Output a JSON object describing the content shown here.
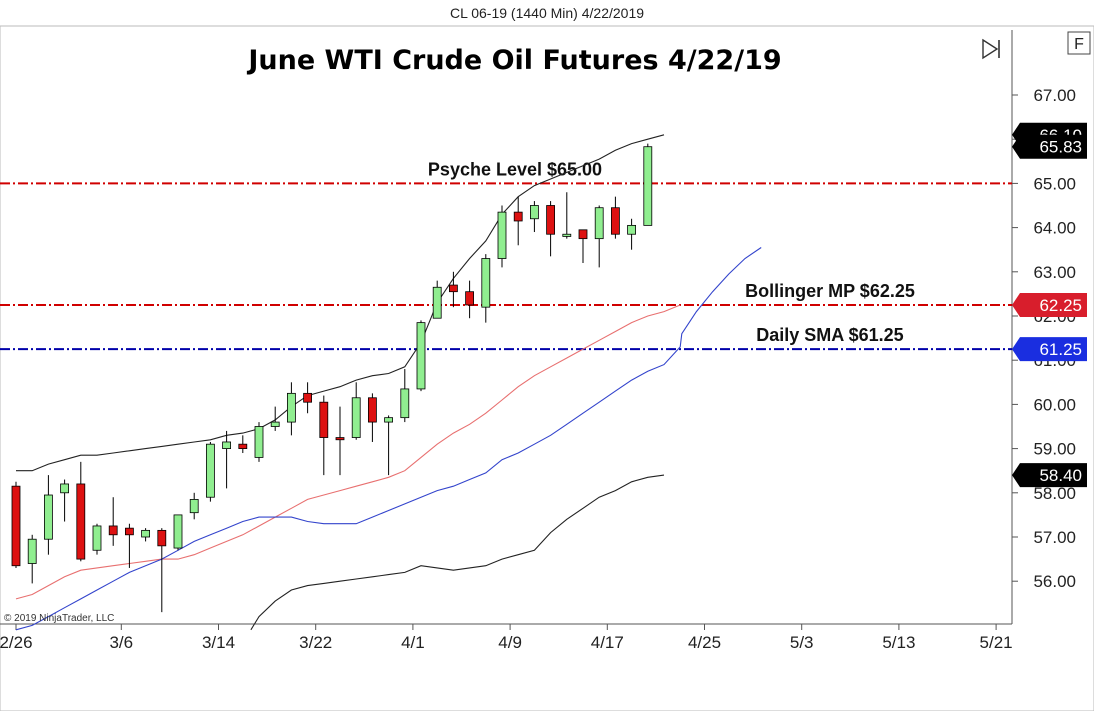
{
  "header": {
    "title": "CL 06-19 (1440 Min)  4/22/2019"
  },
  "toolbar": {
    "play_icon": "skip-to-end-icon",
    "f_button_label": "F"
  },
  "copyright": "© 2019 NinjaTrader, LLC",
  "colors": {
    "up": "#90ee90",
    "down": "#dd1111",
    "candle_outline": "#000000",
    "red_line": "#d00000",
    "blue_line": "#0000aa",
    "red_badge": "#d81e2c",
    "blue_badge": "#1a2ee0",
    "black_badge": "#000000"
  },
  "chart_data": {
    "type": "candlestick",
    "title": "June WTI Crude Oil Futures 4/22/19",
    "ylim": [
      54.9,
      67.9
    ],
    "y_ticks": [
      "56.00",
      "57.00",
      "58.00",
      "59.00",
      "60.00",
      "61.00",
      "62.00",
      "63.00",
      "64.00",
      "65.00",
      "66.00",
      "67.00"
    ],
    "x_ticks": [
      {
        "label": "2/26",
        "bar": 0
      },
      {
        "label": "3/6",
        "bar": 6.5
      },
      {
        "label": "3/14",
        "bar": 12.5
      },
      {
        "label": "3/22",
        "bar": 18.5
      },
      {
        "label": "4/1",
        "bar": 24.5
      },
      {
        "label": "4/9",
        "bar": 30.5
      },
      {
        "label": "4/17",
        "bar": 36.5
      },
      {
        "label": "4/25",
        "bar": 42.5
      },
      {
        "label": "5/3",
        "bar": 48.5
      },
      {
        "label": "5/13",
        "bar": 54.5
      },
      {
        "label": "5/21",
        "bar": 60.5
      }
    ],
    "candles": [
      {
        "o": 58.15,
        "h": 58.25,
        "l": 56.3,
        "c": 56.35
      },
      {
        "o": 56.4,
        "h": 57.05,
        "l": 55.95,
        "c": 56.95
      },
      {
        "o": 56.95,
        "h": 58.4,
        "l": 56.6,
        "c": 57.95
      },
      {
        "o": 58.0,
        "h": 58.3,
        "l": 57.35,
        "c": 58.2
      },
      {
        "o": 58.2,
        "h": 58.7,
        "l": 56.45,
        "c": 56.5
      },
      {
        "o": 56.7,
        "h": 57.3,
        "l": 56.6,
        "c": 57.25
      },
      {
        "o": 57.25,
        "h": 57.9,
        "l": 56.8,
        "c": 57.05
      },
      {
        "o": 57.2,
        "h": 57.3,
        "l": 56.3,
        "c": 57.05
      },
      {
        "o": 57.0,
        "h": 57.2,
        "l": 56.9,
        "c": 57.15
      },
      {
        "o": 57.15,
        "h": 57.2,
        "l": 55.3,
        "c": 56.8
      },
      {
        "o": 56.75,
        "h": 57.5,
        "l": 56.7,
        "c": 57.5
      },
      {
        "o": 57.55,
        "h": 58.0,
        "l": 57.4,
        "c": 57.85
      },
      {
        "o": 57.9,
        "h": 59.15,
        "l": 57.8,
        "c": 59.1
      },
      {
        "o": 59.0,
        "h": 59.4,
        "l": 58.1,
        "c": 59.15
      },
      {
        "o": 59.1,
        "h": 59.3,
        "l": 58.9,
        "c": 59.0
      },
      {
        "o": 58.8,
        "h": 59.6,
        "l": 58.7,
        "c": 59.5
      },
      {
        "o": 59.5,
        "h": 59.95,
        "l": 59.4,
        "c": 59.6
      },
      {
        "o": 59.6,
        "h": 60.5,
        "l": 59.3,
        "c": 60.25
      },
      {
        "o": 60.25,
        "h": 60.5,
        "l": 59.8,
        "c": 60.05
      },
      {
        "o": 60.05,
        "h": 60.2,
        "l": 58.4,
        "c": 59.25
      },
      {
        "o": 59.25,
        "h": 59.95,
        "l": 58.4,
        "c": 59.2
      },
      {
        "o": 59.25,
        "h": 60.5,
        "l": 59.2,
        "c": 60.15
      },
      {
        "o": 60.15,
        "h": 60.25,
        "l": 59.15,
        "c": 59.6
      },
      {
        "o": 59.6,
        "h": 59.75,
        "l": 58.4,
        "c": 59.7
      },
      {
        "o": 59.7,
        "h": 60.8,
        "l": 59.6,
        "c": 60.35
      },
      {
        "o": 60.35,
        "h": 61.9,
        "l": 60.3,
        "c": 61.85
      },
      {
        "o": 61.95,
        "h": 62.8,
        "l": 61.95,
        "c": 62.65
      },
      {
        "o": 62.7,
        "h": 63.0,
        "l": 62.2,
        "c": 62.55
      },
      {
        "o": 62.55,
        "h": 62.8,
        "l": 61.95,
        "c": 62.25
      },
      {
        "o": 62.2,
        "h": 63.4,
        "l": 61.85,
        "c": 63.3
      },
      {
        "o": 63.3,
        "h": 64.5,
        "l": 63.1,
        "c": 64.35
      },
      {
        "o": 64.35,
        "h": 64.7,
        "l": 63.6,
        "c": 64.15
      },
      {
        "o": 64.2,
        "h": 64.6,
        "l": 63.9,
        "c": 64.5
      },
      {
        "o": 64.5,
        "h": 64.6,
        "l": 63.35,
        "c": 63.85
      },
      {
        "o": 63.8,
        "h": 64.8,
        "l": 63.75,
        "c": 63.85
      },
      {
        "o": 63.95,
        "h": 63.95,
        "l": 63.2,
        "c": 63.75
      },
      {
        "o": 63.75,
        "h": 64.5,
        "l": 63.1,
        "c": 64.45
      },
      {
        "o": 64.45,
        "h": 64.7,
        "l": 63.75,
        "c": 63.85
      },
      {
        "o": 63.85,
        "h": 64.2,
        "l": 63.5,
        "c": 64.05
      },
      {
        "o": 64.05,
        "h": 65.9,
        "l": 64.05,
        "c": 65.83
      }
    ],
    "series": [
      {
        "key": "upper_band",
        "color": "#222222",
        "points": [
          [
            0,
            58.5
          ],
          [
            1,
            58.5
          ],
          [
            2,
            58.65
          ],
          [
            3,
            58.75
          ],
          [
            4,
            58.85
          ],
          [
            5,
            58.85
          ],
          [
            6,
            58.9
          ],
          [
            7,
            58.95
          ],
          [
            8,
            59.0
          ],
          [
            9,
            59.05
          ],
          [
            10,
            59.1
          ],
          [
            11,
            59.15
          ],
          [
            12,
            59.2
          ],
          [
            13,
            59.3
          ],
          [
            14,
            59.35
          ],
          [
            15,
            59.45
          ],
          [
            16,
            59.65
          ],
          [
            17,
            59.95
          ],
          [
            18,
            60.2
          ],
          [
            19,
            60.3
          ],
          [
            20,
            60.4
          ],
          [
            21,
            60.55
          ],
          [
            22,
            60.65
          ],
          [
            23,
            60.7
          ],
          [
            24,
            60.85
          ],
          [
            25,
            61.4
          ],
          [
            26,
            62.3
          ],
          [
            27,
            62.85
          ],
          [
            28,
            63.3
          ],
          [
            29,
            63.7
          ],
          [
            30,
            64.3
          ],
          [
            31,
            64.7
          ],
          [
            32,
            64.95
          ],
          [
            33,
            65.1
          ],
          [
            34,
            65.25
          ],
          [
            35,
            65.4
          ],
          [
            36,
            65.55
          ],
          [
            37,
            65.75
          ],
          [
            38,
            65.9
          ],
          [
            39,
            66.0
          ],
          [
            40,
            66.1
          ]
        ]
      },
      {
        "key": "bollinger_mp",
        "color": "#e87070",
        "points": [
          [
            0,
            55.6
          ],
          [
            1,
            55.7
          ],
          [
            2,
            55.9
          ],
          [
            3,
            56.1
          ],
          [
            4,
            56.25
          ],
          [
            5,
            56.3
          ],
          [
            6,
            56.35
          ],
          [
            7,
            56.4
          ],
          [
            8,
            56.45
          ],
          [
            9,
            56.5
          ],
          [
            10,
            56.5
          ],
          [
            11,
            56.6
          ],
          [
            12,
            56.75
          ],
          [
            13,
            56.9
          ],
          [
            14,
            57.05
          ],
          [
            15,
            57.25
          ],
          [
            16,
            57.45
          ],
          [
            17,
            57.65
          ],
          [
            18,
            57.85
          ],
          [
            19,
            57.95
          ],
          [
            20,
            58.05
          ],
          [
            21,
            58.15
          ],
          [
            22,
            58.25
          ],
          [
            23,
            58.35
          ],
          [
            24,
            58.5
          ],
          [
            25,
            58.8
          ],
          [
            26,
            59.1
          ],
          [
            27,
            59.35
          ],
          [
            28,
            59.55
          ],
          [
            29,
            59.8
          ],
          [
            30,
            60.1
          ],
          [
            31,
            60.4
          ],
          [
            32,
            60.65
          ],
          [
            33,
            60.85
          ],
          [
            34,
            61.05
          ],
          [
            35,
            61.25
          ],
          [
            36,
            61.45
          ],
          [
            37,
            61.65
          ],
          [
            38,
            61.85
          ],
          [
            39,
            62.0
          ],
          [
            40,
            62.1
          ],
          [
            41,
            62.25
          ]
        ]
      },
      {
        "key": "daily_sma",
        "color": "#3344cc",
        "points": [
          [
            0,
            54.9
          ],
          [
            1,
            55.0
          ],
          [
            2,
            55.2
          ],
          [
            3,
            55.4
          ],
          [
            4,
            55.6
          ],
          [
            5,
            55.8
          ],
          [
            6,
            56.0
          ],
          [
            7,
            56.2
          ],
          [
            8,
            56.35
          ],
          [
            9,
            56.5
          ],
          [
            10,
            56.7
          ],
          [
            11,
            56.9
          ],
          [
            12,
            57.05
          ],
          [
            13,
            57.2
          ],
          [
            14,
            57.35
          ],
          [
            15,
            57.45
          ],
          [
            16,
            57.45
          ],
          [
            17,
            57.45
          ],
          [
            18,
            57.35
          ],
          [
            19,
            57.3
          ],
          [
            20,
            57.3
          ],
          [
            21,
            57.3
          ],
          [
            22,
            57.45
          ],
          [
            23,
            57.6
          ],
          [
            24,
            57.75
          ],
          [
            25,
            57.9
          ],
          [
            26,
            58.05
          ],
          [
            27,
            58.15
          ],
          [
            28,
            58.3
          ],
          [
            29,
            58.45
          ],
          [
            30,
            58.75
          ],
          [
            31,
            58.9
          ],
          [
            32,
            59.1
          ],
          [
            33,
            59.3
          ],
          [
            34,
            59.55
          ],
          [
            35,
            59.8
          ],
          [
            36,
            60.05
          ],
          [
            37,
            60.3
          ],
          [
            38,
            60.55
          ],
          [
            39,
            60.75
          ],
          [
            40,
            60.9
          ],
          [
            41,
            61.3
          ],
          [
            41.1,
            61.6
          ],
          [
            42,
            62.1
          ],
          [
            43,
            62.55
          ],
          [
            44,
            62.95
          ],
          [
            45,
            63.3
          ],
          [
            46,
            63.55
          ]
        ]
      },
      {
        "key": "lower_band",
        "color": "#222222",
        "points": [
          [
            14.5,
            54.9
          ],
          [
            15,
            55.2
          ],
          [
            16,
            55.55
          ],
          [
            17,
            55.8
          ],
          [
            18,
            55.9
          ],
          [
            19,
            55.95
          ],
          [
            20,
            56.0
          ],
          [
            21,
            56.05
          ],
          [
            22,
            56.1
          ],
          [
            23,
            56.15
          ],
          [
            24,
            56.2
          ],
          [
            25,
            56.35
          ],
          [
            26,
            56.3
          ],
          [
            27,
            56.25
          ],
          [
            28,
            56.3
          ],
          [
            29,
            56.35
          ],
          [
            30,
            56.5
          ],
          [
            31,
            56.6
          ],
          [
            32,
            56.7
          ],
          [
            33,
            57.1
          ],
          [
            34,
            57.4
          ],
          [
            35,
            57.65
          ],
          [
            36,
            57.9
          ],
          [
            37,
            58.05
          ],
          [
            38,
            58.25
          ],
          [
            39,
            58.35
          ],
          [
            40,
            58.4
          ]
        ]
      }
    ],
    "levels": [
      {
        "label": "Psyche Level $65.00",
        "value": 65.0,
        "color": "#d00000"
      },
      {
        "label": "Bollinger MP $62.25",
        "value": 62.25,
        "color": "#d00000"
      },
      {
        "label": "Daily SMA $61.25",
        "value": 61.25,
        "color": "#0000aa"
      }
    ],
    "price_badges": [
      {
        "text": "66.10",
        "value": 66.1,
        "color": "#000000"
      },
      {
        "text": "65.83",
        "value": 65.83,
        "color": "#000000"
      },
      {
        "text": "62.25",
        "value": 62.25,
        "color": "#d81e2c"
      },
      {
        "text": "61.25",
        "value": 61.25,
        "color": "#1a2ee0"
      },
      {
        "text": "58.40",
        "value": 58.4,
        "color": "#000000"
      }
    ]
  }
}
